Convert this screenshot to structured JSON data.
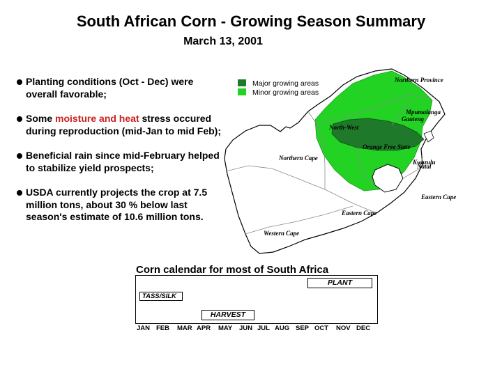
{
  "title": "South African Corn - Growing Season Summary",
  "date": "March 13, 2001",
  "bullets": [
    {
      "pre": "Planting conditions (Oct - Dec) were overall favorable;",
      "highlight": "",
      "post": ""
    },
    {
      "pre": "Some ",
      "highlight": "moisture and heat",
      "post": " stress occured during reproduction (mid-Jan to mid Feb);"
    },
    {
      "pre": "Beneficial rain since mid-February helped to stabilize yield prospects;",
      "highlight": "",
      "post": ""
    },
    {
      "pre": "USDA currently projects the crop at 7.5 million tons, about 30 % below last season's estimate of 10.6 million tons.",
      "highlight": "",
      "post": ""
    }
  ],
  "legend": {
    "major": {
      "label": "Major growing areas",
      "color": "#1e7a2a"
    },
    "minor": {
      "label": "Minor growing areas",
      "color": "#22d323"
    }
  },
  "map_labels": {
    "northern_province": "Northern Province",
    "mpumalanga": "Mpumalanga",
    "gauteng": "Gauteng",
    "north_west": "North-West",
    "orange_free_state": "Orange Free State",
    "kwazulu_natal_1": "Kwazulu",
    "kwazulu_natal_2": "Natal",
    "northern_cape": "Northern Cape",
    "eastern_cape_right": "Eastern Cape",
    "eastern_cape": "Eastern Cape",
    "western_cape": "Western Cape"
  },
  "calendar": {
    "title": "Corn calendar for most of South Africa",
    "plant_label": "PLANT",
    "tass_label": "TASS/SILK",
    "harvest_label": "HARVEST",
    "months": [
      "JAN",
      "FEB",
      "MAR",
      "APR",
      "MAY",
      "JUN",
      "JUL",
      "AUG",
      "SEP",
      "OCT",
      "NOV",
      "DEC"
    ]
  }
}
